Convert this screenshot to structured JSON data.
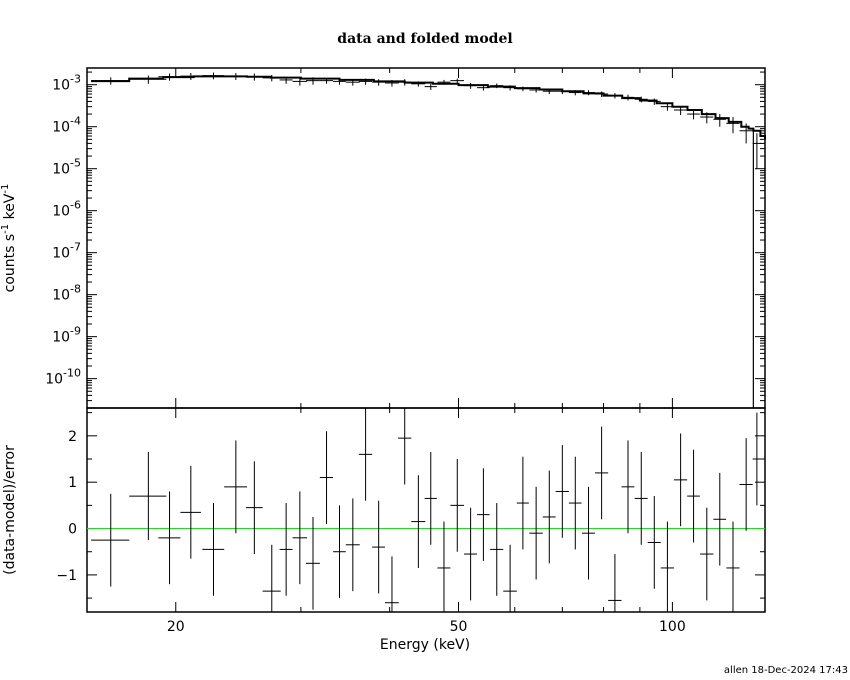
{
  "chart_data": [
    {
      "type": "scatter",
      "panel": "upper",
      "title": "data and folded model",
      "ylabel": "counts s",
      "ylabel_units": [
        "-1",
        "keV",
        "-1"
      ],
      "xlog": true,
      "ylog": true,
      "xlim": [
        15,
        135
      ],
      "ylim": [
        2e-11,
        0.0025
      ],
      "y_tick_labels": [
        {
          "base": "10",
          "exp": "-3",
          "v": 0.001
        },
        {
          "base": "10",
          "exp": "-4",
          "v": 0.0001
        },
        {
          "base": "10",
          "exp": "-5",
          "v": 1e-05
        },
        {
          "base": "10",
          "exp": "-6",
          "v": 1e-06
        },
        {
          "base": "10",
          "exp": "-7",
          "v": 1e-07
        },
        {
          "base": "10",
          "exp": "-8",
          "v": 1e-08
        },
        {
          "base": "10",
          "exp": "-9",
          "v": 1e-09
        },
        {
          "base": "10",
          "exp": "-10",
          "v": 1e-10
        }
      ],
      "data": {
        "x": [
          16.2,
          18.3,
          19.6,
          21.0,
          22.6,
          24.3,
          25.8,
          27.3,
          28.6,
          29.9,
          31.2,
          32.6,
          34.0,
          35.5,
          37.0,
          38.6,
          40.3,
          42.0,
          43.9,
          45.7,
          47.7,
          49.8,
          52.0,
          54.2,
          56.6,
          59.1,
          61.6,
          64.3,
          67.1,
          70.0,
          73.0,
          76.2,
          79.5,
          83.0,
          86.6,
          90.4,
          94.3,
          98.4,
          102.7,
          107.1,
          111.8,
          116.6,
          121.7,
          127.0,
          131.5
        ],
        "y": [
          0.00125,
          0.00135,
          0.00155,
          0.0016,
          0.00165,
          0.0016,
          0.00155,
          0.00145,
          0.0013,
          0.0012,
          0.00125,
          0.00125,
          0.0012,
          0.00115,
          0.0012,
          0.00115,
          0.0011,
          0.00115,
          0.00105,
          0.0009,
          0.00115,
          0.00125,
          0.00095,
          0.00085,
          0.00095,
          0.00085,
          0.0008,
          0.00075,
          0.0007,
          0.0007,
          0.00065,
          0.00065,
          0.0006,
          0.00055,
          0.0005,
          0.00045,
          0.0004,
          0.0003,
          0.00025,
          0.0002,
          0.00017,
          0.00015,
          0.00012,
          8e-05,
          4e-05
        ],
        "xerr": [
          1.0,
          1.1,
          0.7,
          0.7,
          0.8,
          0.9,
          0.7,
          0.8,
          0.6,
          0.7,
          0.7,
          0.7,
          0.7,
          0.8,
          0.8,
          0.8,
          0.9,
          0.9,
          1.0,
          0.9,
          1.0,
          1.1,
          1.1,
          1.1,
          1.2,
          1.3,
          1.2,
          1.4,
          1.4,
          1.5,
          1.5,
          1.6,
          1.7,
          1.8,
          1.8,
          1.9,
          2.0,
          2.1,
          2.2,
          2.2,
          2.4,
          2.4,
          2.6,
          2.7,
          1.8
        ],
        "yerr_lo": [
          0.00025,
          0.0003,
          0.0003,
          0.0003,
          0.0003,
          0.0003,
          0.0003,
          0.00025,
          0.00025,
          0.00025,
          0.00025,
          0.0002,
          0.0002,
          0.0002,
          0.0002,
          0.0002,
          0.0002,
          0.0002,
          0.00015,
          0.00015,
          0.00015,
          0.00015,
          0.00015,
          0.00012,
          0.00012,
          0.00012,
          0.0001,
          0.0001,
          0.0001,
          0.0001,
          9e-05,
          9e-05,
          9e-05,
          8e-05,
          8e-05,
          7e-05,
          7e-05,
          6e-05,
          6e-05,
          5e-05,
          5e-05,
          5e-05,
          5e-05,
          4e-05,
          3e-05
        ],
        "yerr_hi": [
          0.00025,
          0.0003,
          0.0003,
          0.0003,
          0.0003,
          0.0003,
          0.0003,
          0.00025,
          0.00025,
          0.00025,
          0.00025,
          0.0002,
          0.0002,
          0.0002,
          0.0002,
          0.0002,
          0.0002,
          0.0002,
          0.00015,
          0.00015,
          0.00015,
          0.00015,
          0.00015,
          0.00012,
          0.00012,
          0.00012,
          0.0001,
          0.0001,
          0.0001,
          0.0001,
          9e-05,
          9e-05,
          9e-05,
          8e-05,
          8e-05,
          7e-05,
          7e-05,
          6e-05,
          6e-05,
          5e-05,
          5e-05,
          5e-05,
          5e-05,
          4e-05,
          3e-05
        ]
      },
      "model": {
        "x": [
          15.2,
          17.2,
          19.2,
          21.2,
          23.2,
          25.2,
          27.2,
          30,
          34,
          38,
          42,
          46,
          50,
          55,
          60,
          65,
          70,
          75,
          80,
          85,
          90,
          95,
          100,
          105,
          110,
          115,
          120,
          125,
          128,
          130,
          133,
          135
        ],
        "y": [
          0.00122,
          0.0014,
          0.00152,
          0.00158,
          0.00158,
          0.00155,
          0.00148,
          0.0014,
          0.0013,
          0.0012,
          0.00112,
          0.00105,
          0.00098,
          0.0009,
          0.00083,
          0.00077,
          0.0007,
          0.00062,
          0.00055,
          0.00048,
          0.00042,
          0.00036,
          0.0003,
          0.00025,
          0.0002,
          0.00016,
          0.00013,
          0.0001,
          9e-05,
          8e-05,
          6e-05,
          5e-05
        ]
      },
      "colors": {
        "data": "#000000",
        "model": "#000000"
      }
    },
    {
      "type": "scatter",
      "panel": "lower",
      "xlabel": "Energy (keV)",
      "ylabel": "(data-model)/error",
      "xlog": true,
      "xlim": [
        15,
        135
      ],
      "ylim": [
        -1.8,
        2.6
      ],
      "x_ticks": [
        {
          "label": "20",
          "v": 20
        },
        {
          "label": "50",
          "v": 50
        },
        {
          "label": "100",
          "v": 100
        }
      ],
      "y_ticks": [
        {
          "label": "2",
          "v": 2
        },
        {
          "label": "1",
          "v": 1
        },
        {
          "label": "0",
          "v": 0
        },
        {
          "label": "−1",
          "v": -1
        }
      ],
      "zero_line": 0,
      "data": {
        "x": [
          16.2,
          18.3,
          19.6,
          21.0,
          22.6,
          24.3,
          25.8,
          27.3,
          28.6,
          29.9,
          31.2,
          32.6,
          34.0,
          35.5,
          37.0,
          38.6,
          40.3,
          42.0,
          43.9,
          45.7,
          47.7,
          49.8,
          52.0,
          54.2,
          56.6,
          59.1,
          61.6,
          64.3,
          67.1,
          70.0,
          73.0,
          76.2,
          79.5,
          83.0,
          86.6,
          90.4,
          94.3,
          98.4,
          102.7,
          107.1,
          111.8,
          116.6,
          121.7,
          127.0,
          131.5
        ],
        "y": [
          -0.25,
          0.7,
          -0.2,
          0.35,
          -0.45,
          0.9,
          0.45,
          -1.35,
          -0.45,
          -0.2,
          -0.75,
          1.1,
          -0.5,
          -0.35,
          1.6,
          -0.4,
          -1.6,
          1.95,
          0.15,
          0.65,
          -0.85,
          0.5,
          -0.55,
          0.3,
          -0.45,
          -1.35,
          0.55,
          -0.1,
          0.25,
          0.8,
          0.55,
          -0.1,
          1.2,
          -1.55,
          0.9,
          0.65,
          -0.3,
          -0.85,
          1.05,
          0.7,
          -0.55,
          0.2,
          -0.85,
          0.95,
          1.5
        ],
        "xerr": [
          1.0,
          1.1,
          0.7,
          0.7,
          0.8,
          0.9,
          0.7,
          0.8,
          0.6,
          0.7,
          0.7,
          0.7,
          0.7,
          0.8,
          0.8,
          0.8,
          0.9,
          0.9,
          1.0,
          0.9,
          1.0,
          1.1,
          1.1,
          1.1,
          1.2,
          1.3,
          1.2,
          1.4,
          1.4,
          1.5,
          1.5,
          1.6,
          1.7,
          1.8,
          1.8,
          1.9,
          2.0,
          2.1,
          2.2,
          2.2,
          2.4,
          2.4,
          2.6,
          2.7,
          1.8
        ],
        "yerr": [
          1.0,
          0.95,
          1.0,
          1.0,
          1.0,
          1.0,
          1.0,
          1.0,
          1.0,
          1.0,
          1.0,
          1.0,
          1.0,
          1.0,
          1.0,
          1.0,
          1.0,
          1.0,
          1.0,
          1.0,
          1.0,
          1.0,
          1.0,
          1.0,
          1.0,
          1.0,
          1.0,
          1.0,
          1.0,
          1.0,
          1.0,
          1.0,
          1.0,
          1.0,
          1.0,
          1.0,
          1.0,
          1.0,
          1.0,
          1.0,
          1.0,
          1.0,
          1.0,
          1.0,
          1.0
        ]
      },
      "colors": {
        "data": "#000000",
        "zero_line": "#2fd12f"
      }
    }
  ],
  "footer": "allen 18-Dec-2024 17:43"
}
